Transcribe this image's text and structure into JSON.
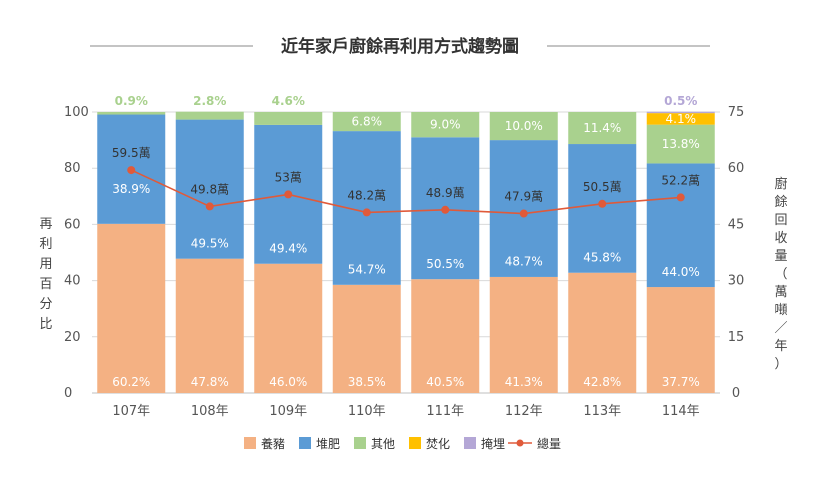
{
  "chart_data": {
    "type": "bar",
    "title": "近年家戶廚餘再利用方式趨勢圖",
    "ylabel": "再利用百分比",
    "y2label": "廚餘回收量（萬噸／年）",
    "ylim": [
      0,
      100
    ],
    "y2lim": [
      0,
      75
    ],
    "yticks": [
      "0",
      "20",
      "40",
      "60",
      "80",
      "100"
    ],
    "y2ticks": [
      "0",
      "15",
      "30",
      "45",
      "60",
      "75"
    ],
    "categories": [
      "107年",
      "108年",
      "109年",
      "110年",
      "111年",
      "112年",
      "113年",
      "114年"
    ],
    "series": [
      {
        "name": "養豬",
        "color": "#F4B183",
        "values": [
          60.2,
          47.8,
          46.0,
          38.5,
          40.5,
          41.3,
          42.8,
          37.7
        ],
        "labels": [
          "60.2%",
          "47.8%",
          "46.0%",
          "38.5%",
          "40.5%",
          "41.3%",
          "42.8%",
          "37.7%"
        ]
      },
      {
        "name": "堆肥",
        "color": "#5B9BD5",
        "values": [
          38.9,
          49.5,
          49.4,
          54.7,
          50.5,
          48.7,
          45.8,
          44.0
        ],
        "labels": [
          "38.9%",
          "49.5%",
          "49.4%",
          "54.7%",
          "50.5%",
          "48.7%",
          "45.8%",
          "44.0%"
        ]
      },
      {
        "name": "其他",
        "color": "#A9D18E",
        "values": [
          0.9,
          2.8,
          4.6,
          6.8,
          9.0,
          10.0,
          11.4,
          13.8
        ],
        "labels": [
          "0.9%",
          "2.8%",
          "4.6%",
          "6.8%",
          "9.0%",
          "10.0%",
          "11.4%",
          "13.8%"
        ]
      },
      {
        "name": "焚化",
        "color": "#FFC000",
        "values": [
          0,
          0,
          0,
          0,
          0,
          0,
          0,
          4.1
        ],
        "labels": [
          "",
          "",
          "",
          "",
          "",
          "",
          "",
          "4.1%"
        ]
      },
      {
        "name": "掩埋",
        "color": "#B4A7D6",
        "values": [
          0,
          0,
          0,
          0,
          0,
          0,
          0,
          0.5
        ],
        "labels": [
          "",
          "",
          "",
          "",
          "",
          "",
          "",
          "0.5%"
        ]
      }
    ],
    "line": {
      "name": "總量",
      "color": "#E05A3A",
      "values": [
        59.5,
        49.8,
        53,
        48.2,
        48.9,
        47.9,
        50.5,
        52.2
      ],
      "labels": [
        "59.5萬",
        "49.8萬",
        "53萬",
        "48.2萬",
        "48.9萬",
        "47.9萬",
        "50.5萬",
        "52.2萬"
      ]
    },
    "legend": {
      "position": "bottom"
    },
    "grid": true
  }
}
